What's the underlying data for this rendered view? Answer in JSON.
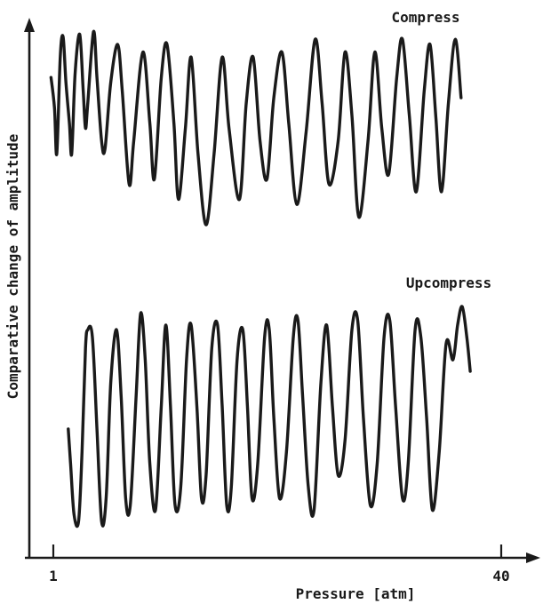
{
  "chart_data": {
    "type": "line",
    "title": "",
    "xlabel": "Pressure [atm]",
    "ylabel": "Comparative change of amplitude",
    "xlim": [
      1,
      40
    ],
    "x_ticks": [
      1,
      40
    ],
    "x_tick_labels": [
      "1",
      "40"
    ],
    "grid": false,
    "series": [
      {
        "name": "Compress",
        "points": [
          [
            0.8,
            0.8
          ],
          [
            1.1,
            0.68
          ],
          [
            1.3,
            0.5
          ],
          [
            1.6,
            0.88
          ],
          [
            1.85,
            0.96
          ],
          [
            2.1,
            0.78
          ],
          [
            2.4,
            0.62
          ],
          [
            2.6,
            0.5
          ],
          [
            2.9,
            0.82
          ],
          [
            3.3,
            0.97
          ],
          [
            3.6,
            0.75
          ],
          [
            3.8,
            0.6
          ],
          [
            4.0,
            0.7
          ],
          [
            4.5,
            0.98
          ],
          [
            4.8,
            0.8
          ],
          [
            5.2,
            0.55
          ],
          [
            5.5,
            0.52
          ],
          [
            6.0,
            0.78
          ],
          [
            6.6,
            0.93
          ],
          [
            7.0,
            0.75
          ],
          [
            7.6,
            0.38
          ],
          [
            8.0,
            0.55
          ],
          [
            8.8,
            0.9
          ],
          [
            9.4,
            0.62
          ],
          [
            9.8,
            0.4
          ],
          [
            10.4,
            0.8
          ],
          [
            10.9,
            0.93
          ],
          [
            11.5,
            0.62
          ],
          [
            11.9,
            0.32
          ],
          [
            12.5,
            0.6
          ],
          [
            13.0,
            0.88
          ],
          [
            13.6,
            0.5
          ],
          [
            14.3,
            0.22
          ],
          [
            15.0,
            0.5
          ],
          [
            15.7,
            0.88
          ],
          [
            16.3,
            0.6
          ],
          [
            17.2,
            0.32
          ],
          [
            17.8,
            0.7
          ],
          [
            18.4,
            0.88
          ],
          [
            19.0,
            0.55
          ],
          [
            19.6,
            0.4
          ],
          [
            20.2,
            0.72
          ],
          [
            20.9,
            0.9
          ],
          [
            21.5,
            0.62
          ],
          [
            22.2,
            0.3
          ],
          [
            23.0,
            0.58
          ],
          [
            23.8,
            0.95
          ],
          [
            24.4,
            0.7
          ],
          [
            25.0,
            0.38
          ],
          [
            25.8,
            0.55
          ],
          [
            26.4,
            0.9
          ],
          [
            27.0,
            0.65
          ],
          [
            27.6,
            0.25
          ],
          [
            28.4,
            0.55
          ],
          [
            29.0,
            0.9
          ],
          [
            29.6,
            0.6
          ],
          [
            30.2,
            0.42
          ],
          [
            30.9,
            0.8
          ],
          [
            31.4,
            0.95
          ],
          [
            32.0,
            0.65
          ],
          [
            32.6,
            0.35
          ],
          [
            33.3,
            0.75
          ],
          [
            33.8,
            0.93
          ],
          [
            34.3,
            0.65
          ],
          [
            34.8,
            0.35
          ],
          [
            35.4,
            0.7
          ],
          [
            36.0,
            0.95
          ],
          [
            36.5,
            0.72
          ]
        ]
      },
      {
        "name": "Upcompress",
        "points": [
          [
            2.3,
            0.45
          ],
          [
            2.5,
            0.3
          ],
          [
            2.8,
            0.08
          ],
          [
            3.2,
            0.05
          ],
          [
            3.5,
            0.35
          ],
          [
            3.8,
            0.8
          ],
          [
            4.0,
            0.88
          ],
          [
            4.4,
            0.85
          ],
          [
            4.8,
            0.45
          ],
          [
            5.2,
            0.05
          ],
          [
            5.6,
            0.15
          ],
          [
            6.0,
            0.65
          ],
          [
            6.5,
            0.88
          ],
          [
            6.9,
            0.6
          ],
          [
            7.3,
            0.15
          ],
          [
            7.7,
            0.12
          ],
          [
            8.2,
            0.58
          ],
          [
            8.6,
            0.95
          ],
          [
            9.0,
            0.75
          ],
          [
            9.4,
            0.3
          ],
          [
            9.9,
            0.1
          ],
          [
            10.4,
            0.55
          ],
          [
            10.8,
            0.9
          ],
          [
            11.2,
            0.55
          ],
          [
            11.6,
            0.12
          ],
          [
            12.1,
            0.2
          ],
          [
            12.6,
            0.75
          ],
          [
            13.0,
            0.9
          ],
          [
            13.5,
            0.55
          ],
          [
            13.9,
            0.15
          ],
          [
            14.3,
            0.25
          ],
          [
            14.8,
            0.8
          ],
          [
            15.3,
            0.9
          ],
          [
            15.7,
            0.55
          ],
          [
            16.1,
            0.12
          ],
          [
            16.5,
            0.2
          ],
          [
            17.0,
            0.75
          ],
          [
            17.5,
            0.88
          ],
          [
            17.9,
            0.55
          ],
          [
            18.3,
            0.15
          ],
          [
            18.8,
            0.3
          ],
          [
            19.4,
            0.85
          ],
          [
            19.8,
            0.88
          ],
          [
            20.2,
            0.5
          ],
          [
            20.7,
            0.15
          ],
          [
            21.3,
            0.35
          ],
          [
            21.9,
            0.85
          ],
          [
            22.3,
            0.92
          ],
          [
            22.7,
            0.6
          ],
          [
            23.2,
            0.2
          ],
          [
            23.7,
            0.1
          ],
          [
            24.3,
            0.65
          ],
          [
            24.8,
            0.9
          ],
          [
            25.3,
            0.55
          ],
          [
            25.8,
            0.25
          ],
          [
            26.4,
            0.4
          ],
          [
            27.0,
            0.88
          ],
          [
            27.5,
            0.92
          ],
          [
            28.0,
            0.5
          ],
          [
            28.6,
            0.12
          ],
          [
            29.2,
            0.3
          ],
          [
            29.8,
            0.85
          ],
          [
            30.3,
            0.92
          ],
          [
            30.8,
            0.55
          ],
          [
            31.4,
            0.15
          ],
          [
            31.9,
            0.3
          ],
          [
            32.5,
            0.88
          ],
          [
            33.0,
            0.85
          ],
          [
            33.5,
            0.5
          ],
          [
            34.0,
            0.1
          ],
          [
            34.6,
            0.35
          ],
          [
            35.2,
            0.82
          ],
          [
            35.8,
            0.75
          ],
          [
            36.2,
            0.9
          ],
          [
            36.6,
            0.98
          ],
          [
            37.0,
            0.85
          ],
          [
            37.3,
            0.7
          ]
        ]
      }
    ]
  }
}
